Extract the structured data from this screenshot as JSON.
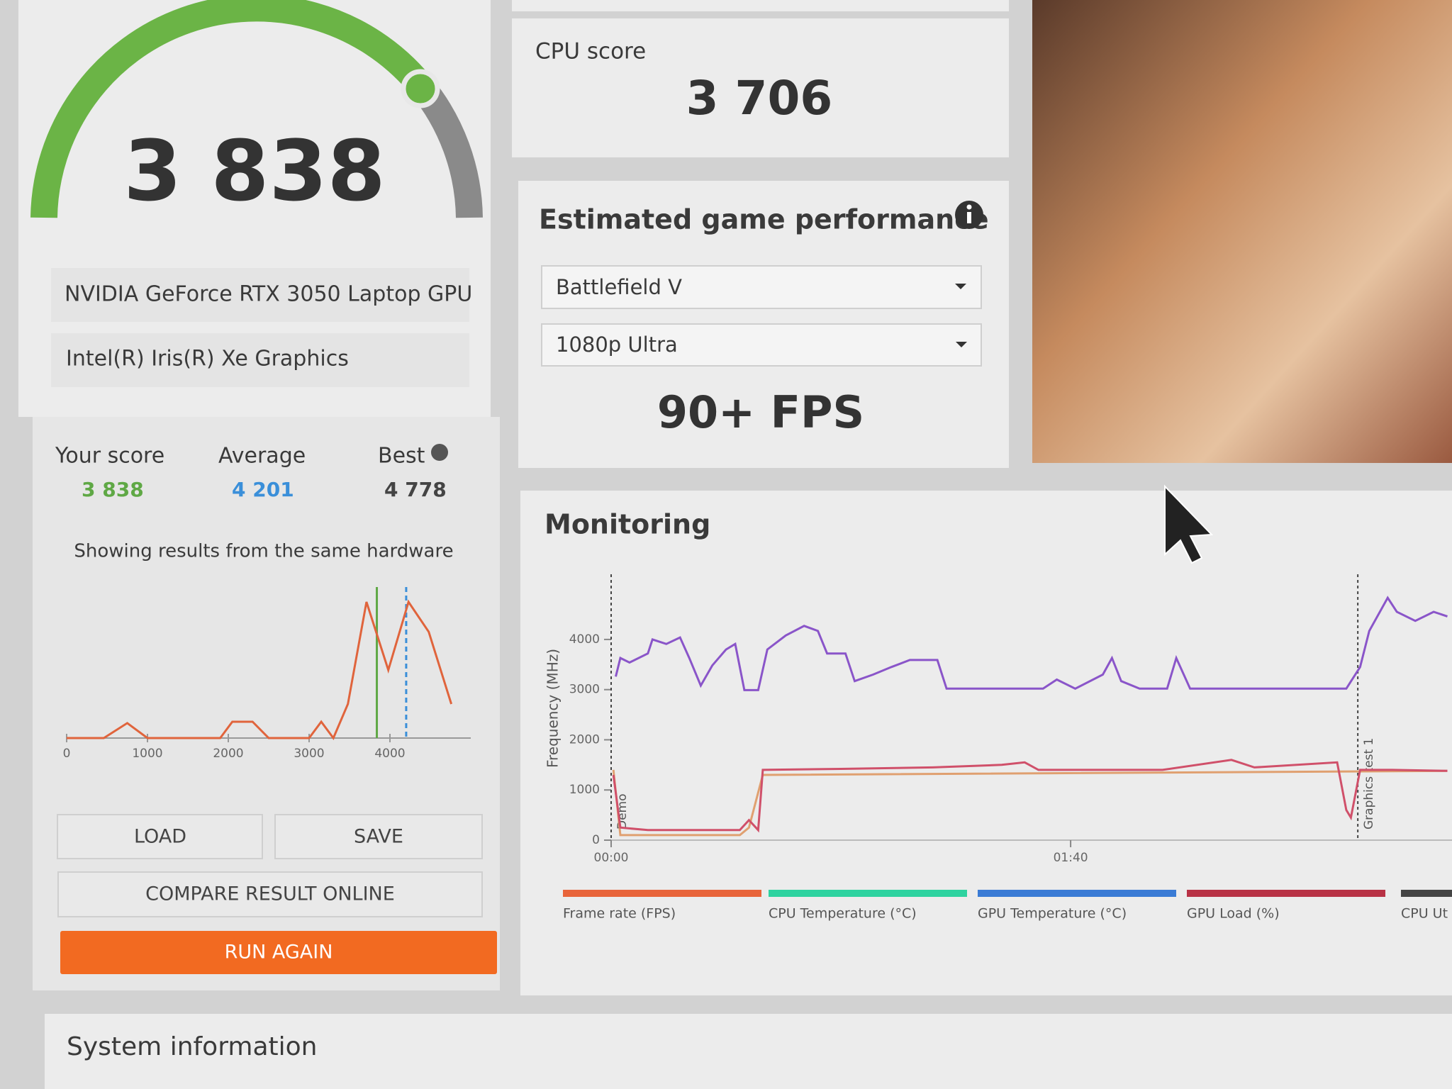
{
  "score_panel": {
    "score": "3 838",
    "gpu": "NVIDIA GeForce RTX 3050 Laptop GPU",
    "igpu": "Intel(R) Iris(R) Xe Graphics"
  },
  "comparison": {
    "labels": [
      "Your score",
      "Average",
      "Best"
    ],
    "values": [
      3838,
      4201,
      4778
    ],
    "value_labels": [
      "3 838",
      "4 201",
      "4 778"
    ],
    "colors": [
      "#5fa845",
      "#3a8fd9",
      "#444444"
    ],
    "note": "Showing results from the same hardware"
  },
  "buttons": {
    "load": "LOAD",
    "save": "SAVE",
    "compare": "COMPARE RESULT ONLINE",
    "run_again": "RUN AGAIN"
  },
  "cpu_score": {
    "label": "CPU score",
    "value": "3 706"
  },
  "game_performance": {
    "title": "Estimated game performance",
    "game": "Battlefield V",
    "preset": "1080p Ultra",
    "fps": "90+ FPS"
  },
  "monitoring_title": "Monitoring",
  "system_information": "System information",
  "chart_data": [
    {
      "type": "line",
      "color": "#e0643c",
      "x": [
        0,
        460,
        750,
        1000,
        1900,
        2050,
        2300,
        2500,
        3000,
        3150,
        3300,
        3480,
        3710,
        3980,
        4230,
        4480,
        4760
      ],
      "values": [
        0,
        0,
        11,
        0,
        0,
        12,
        12,
        0,
        0,
        12,
        0,
        25,
        100,
        50,
        100,
        78,
        25
      ],
      "xlim": [
        0,
        5000
      ],
      "ylim": [
        0,
        100
      ],
      "xticks": [
        0,
        1000,
        2000,
        3000,
        4000
      ]
    },
    {
      "type": "line",
      "y_label": "Frequency (MHz)",
      "xlim": [
        0,
        183
      ],
      "ylim": [
        0,
        5200
      ],
      "yticks": [
        0,
        1000,
        2000,
        3000,
        4000
      ],
      "xticks": [
        {
          "value": 0,
          "label": "00:00"
        },
        {
          "value": 100,
          "label": "01:40"
        }
      ],
      "markers": [
        {
          "label": "Demo",
          "x": 0
        },
        {
          "label": "Graphics test 1",
          "x": 162.5
        }
      ],
      "series": [
        {
          "color": "#8a55c9",
          "x": [
            1,
            2,
            4,
            8,
            9,
            12,
            15,
            17,
            19.5,
            22,
            25,
            27,
            29,
            32,
            34,
            38,
            42,
            45,
            47,
            51,
            53,
            57,
            61,
            65,
            71,
            73,
            94,
            97,
            101,
            107,
            109,
            111,
            115,
            121,
            123,
            126,
            160,
            163,
            165,
            169,
            171,
            175,
            179,
            182
          ],
          "values": [
            3260,
            3630,
            3540,
            3720,
            4000,
            3910,
            4040,
            3630,
            3080,
            3480,
            3800,
            3910,
            2990,
            2990,
            3800,
            4080,
            4270,
            4170,
            3720,
            3720,
            3170,
            3300,
            3450,
            3590,
            3590,
            3020,
            3020,
            3200,
            3020,
            3300,
            3630,
            3170,
            3020,
            3020,
            3630,
            3020,
            3020,
            3450,
            4170,
            4830,
            4550,
            4370,
            4550,
            4460
          ]
        },
        {
          "color": "#e0a070",
          "x": [
            0.5,
            2,
            28,
            30,
            33,
            182
          ],
          "values": [
            1400,
            100,
            100,
            250,
            1300,
            1380
          ]
        },
        {
          "color": "#d0506a",
          "x": [
            0.5,
            2,
            8,
            28,
            30,
            32,
            33,
            50,
            70,
            85,
            90,
            93,
            120,
            135,
            140,
            158,
            160,
            161,
            163,
            170,
            182
          ],
          "values": [
            1300,
            250,
            200,
            200,
            400,
            200,
            1400,
            1420,
            1450,
            1500,
            1550,
            1400,
            1400,
            1600,
            1450,
            1550,
            600,
            450,
            1400,
            1400,
            1380
          ]
        }
      ],
      "legend": [
        {
          "name": "Frame rate (FPS)",
          "color": "#e8643a"
        },
        {
          "name": "CPU Temperature (°C)",
          "color": "#2ed3a0"
        },
        {
          "name": "GPU Temperature (°C)",
          "color": "#3a7bd5"
        },
        {
          "name": "GPU Load (%)",
          "color": "#b83245"
        },
        {
          "name": "CPU Ut",
          "color": "#444444"
        }
      ]
    }
  ]
}
